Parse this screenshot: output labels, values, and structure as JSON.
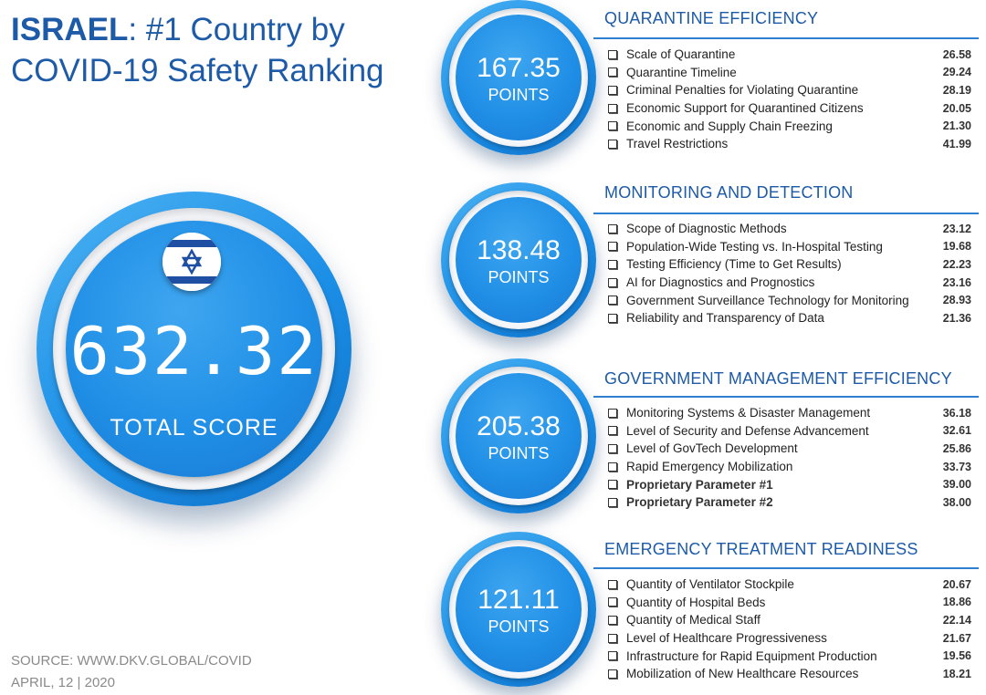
{
  "header": {
    "country": "ISRAEL",
    "title_rest": ": #1 Country by COVID-19 Safety Ranking"
  },
  "total": {
    "value": "632.32",
    "label": "TOTAL SCORE",
    "flag_icon": "israel-flag-icon"
  },
  "colors": {
    "accent": "#1d5aa8",
    "circle": "#208fe6",
    "flag_blue": "#1f4fa3"
  },
  "sections": [
    {
      "title": "QUARANTINE EFFICIENCY",
      "points": "167.35",
      "points_label": "POINTS",
      "items": [
        {
          "label": "Scale of Quarantine",
          "value": "26.58"
        },
        {
          "label": "Quarantine Timeline",
          "value": "29.24"
        },
        {
          "label": "Criminal Penalties for Violating Quarantine",
          "value": "28.19"
        },
        {
          "label": "Economic Support for Quarantined Citizens",
          "value": "20.05"
        },
        {
          "label": "Economic and Supply Chain Freezing",
          "value": "21.30"
        },
        {
          "label": "Travel Restrictions",
          "value": "41.99"
        }
      ]
    },
    {
      "title": "MONITORING AND DETECTION",
      "points": "138.48",
      "points_label": "POINTS",
      "items": [
        {
          "label": "Scope of Diagnostic Methods",
          "value": "23.12"
        },
        {
          "label": "Population-Wide Testing vs. In-Hospital Testing",
          "value": "19.68"
        },
        {
          "label": "Testing Efficiency (Time to Get Results)",
          "value": "22.23"
        },
        {
          "label": "AI for Diagnostics and Prognostics",
          "value": "23.16"
        },
        {
          "label": "Government Surveillance Technology for Monitoring",
          "value": "28.93"
        },
        {
          "label": "Reliability and Transparency of Data",
          "value": "21.36"
        }
      ]
    },
    {
      "title": "GOVERNMENT MANAGEMENT EFFICIENCY",
      "points": "205.38",
      "points_label": "POINTS",
      "items": [
        {
          "label": "Monitoring Systems & Disaster Management",
          "value": "36.18"
        },
        {
          "label": "Level of Security and Defense Advancement",
          "value": "32.61"
        },
        {
          "label": "Level of GovTech Development",
          "value": "25.86"
        },
        {
          "label": "Rapid Emergency Mobilization",
          "value": "33.73"
        },
        {
          "label": "Proprietary Parameter #1",
          "value": "39.00",
          "bold": true
        },
        {
          "label": "Proprietary Parameter #2",
          "value": "38.00",
          "bold": true
        }
      ]
    },
    {
      "title": "EMERGENCY TREATMENT READINESS",
      "points": "121.11",
      "points_label": "POINTS",
      "items": [
        {
          "label": "Quantity of Ventilator Stockpile",
          "value": "20.67"
        },
        {
          "label": "Quantity of Hospital Beds",
          "value": "18.86"
        },
        {
          "label": "Quantity of Medical Staff",
          "value": "22.14"
        },
        {
          "label": "Level of Healthcare Progressiveness",
          "value": "21.67"
        },
        {
          "label": "Infrastructure for Rapid Equipment Production",
          "value": "19.56"
        },
        {
          "label": "Mobilization of New Healthcare Resources",
          "value": "18.21"
        }
      ]
    }
  ],
  "footer": {
    "source": "SOURCE: WWW.DKV.GLOBAL/COVID",
    "date": "APRIL, 12 | 2020"
  }
}
